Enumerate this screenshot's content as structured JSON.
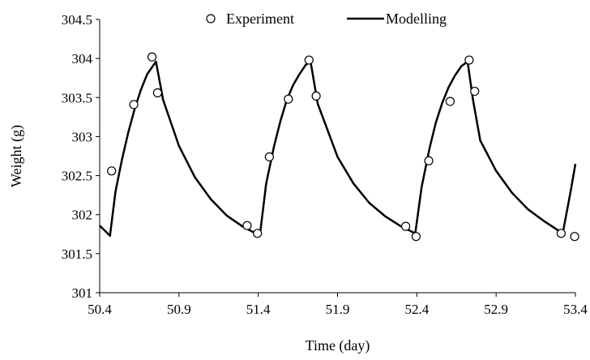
{
  "chart_data": {
    "type": "line",
    "title": "",
    "xlabel": "Time (day)",
    "ylabel": "Weight (g)",
    "xlim": [
      50.4,
      53.4
    ],
    "ylim": [
      301,
      304.5
    ],
    "x_ticks": [
      50.4,
      50.9,
      51.4,
      51.9,
      52.4,
      52.9,
      53.4
    ],
    "x_tick_labels": [
      "50.4",
      "50.9",
      "51.4",
      "51.9",
      "52.4",
      "52.9",
      "53.4"
    ],
    "y_ticks": [
      301,
      301.5,
      302,
      302.5,
      303,
      303.5,
      304,
      304.5
    ],
    "y_tick_labels": [
      "301",
      "301.5",
      "302",
      "302.5",
      "303",
      "303.5",
      "304",
      "304.5"
    ],
    "grid": false,
    "legend_position": "top",
    "series": [
      {
        "name": "Experiment",
        "kind": "scatter",
        "marker": "open-circle",
        "x": [
          50.475,
          50.615,
          50.73,
          50.765,
          51.33,
          51.395,
          51.47,
          51.59,
          51.72,
          51.765,
          52.33,
          52.395,
          52.475,
          52.61,
          52.73,
          52.765,
          53.31,
          53.395
        ],
        "y": [
          302.56,
          303.41,
          304.02,
          303.56,
          301.86,
          301.76,
          302.74,
          303.48,
          303.98,
          303.52,
          301.85,
          301.72,
          302.69,
          303.45,
          303.98,
          303.58,
          301.76,
          301.72
        ]
      },
      {
        "name": "Modelling",
        "kind": "line",
        "x": [
          50.4,
          50.465,
          50.5,
          50.54,
          50.58,
          50.62,
          50.66,
          50.7,
          50.755,
          50.8,
          50.9,
          51.0,
          51.1,
          51.2,
          51.3,
          51.41,
          51.45,
          51.5,
          51.54,
          51.58,
          51.62,
          51.66,
          51.7,
          51.73,
          51.775,
          51.9,
          52.0,
          52.1,
          52.2,
          52.3,
          52.39,
          52.43,
          52.48,
          52.52,
          52.56,
          52.6,
          52.64,
          52.68,
          52.72,
          52.755,
          52.8,
          52.9,
          53.0,
          53.1,
          53.2,
          53.32,
          53.37,
          53.4
        ],
        "y": [
          301.86,
          301.73,
          302.3,
          302.7,
          303.05,
          303.35,
          303.6,
          303.8,
          303.96,
          303.47,
          302.88,
          302.48,
          302.2,
          301.99,
          301.85,
          301.73,
          302.4,
          302.88,
          303.2,
          303.47,
          303.66,
          303.8,
          303.92,
          303.96,
          303.42,
          302.74,
          302.4,
          302.15,
          301.98,
          301.85,
          301.76,
          302.35,
          302.85,
          303.18,
          303.43,
          303.63,
          303.78,
          303.9,
          303.96,
          303.46,
          302.95,
          302.56,
          302.28,
          302.07,
          301.92,
          301.76,
          302.3,
          302.65
        ]
      }
    ]
  }
}
